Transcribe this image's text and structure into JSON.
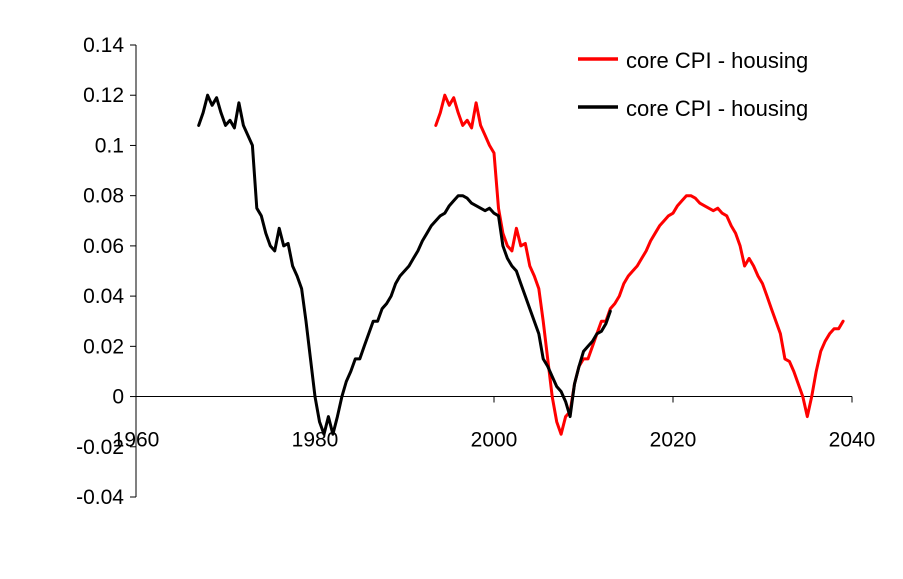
{
  "chart_data": {
    "type": "line",
    "title": "",
    "xlabel": "",
    "ylabel": "",
    "xlim": [
      1960,
      2040
    ],
    "ylim": [
      -0.04,
      0.14
    ],
    "x_ticks": [
      1960,
      1980,
      2000,
      2020,
      2040
    ],
    "x_tick_labels": [
      "1960",
      "1980",
      "2000",
      "2020",
      "2040"
    ],
    "y_ticks": [
      -0.04,
      -0.02,
      0,
      0.02,
      0.04,
      0.06,
      0.08,
      0.1,
      0.12,
      0.14
    ],
    "y_tick_labels": [
      "-0.04",
      "-0.02",
      "0",
      "0.02",
      "0.04",
      "0.06",
      "0.08",
      "0.1",
      "0.12",
      "0.14"
    ],
    "grid": false,
    "legend_position": "top-right",
    "series": [
      {
        "name": "core CPI - housing",
        "color": "#ff0000",
        "x": [
          1993.5,
          1994.0,
          1994.5,
          1995.0,
          1995.5,
          1996.0,
          1996.5,
          1997.0,
          1997.5,
          1998.0,
          1998.5,
          1999.0,
          1999.5,
          2000.0,
          2000.5,
          2001.0,
          2001.5,
          2002.0,
          2002.5,
          2003.0,
          2003.5,
          2004.0,
          2004.5,
          2005.0,
          2005.5,
          2006.0,
          2006.5,
          2007.0,
          2007.5,
          2008.0,
          2008.5,
          2009.0,
          2009.5,
          2010.0,
          2010.5,
          2011.0,
          2011.5,
          2012.0,
          2012.5,
          2013.0,
          2013.5,
          2014.0,
          2014.5,
          2015.0,
          2015.5,
          2016.0,
          2016.5,
          2017.0,
          2017.5,
          2018.0,
          2018.5,
          2019.0,
          2019.5,
          2020.0,
          2020.5,
          2021.0,
          2021.5,
          2022.0,
          2022.5,
          2023.0,
          2023.5,
          2024.0,
          2024.5,
          2025.0,
          2025.5,
          2026.0,
          2026.5,
          2027.0,
          2027.5,
          2028.0,
          2028.5,
          2029.0,
          2029.5,
          2030.0,
          2030.5,
          2031.0,
          2031.5,
          2032.0,
          2032.5,
          2033.0,
          2033.5,
          2034.0,
          2034.5,
          2035.0,
          2035.5,
          2036.0,
          2036.5,
          2037.0,
          2037.5,
          2038.0,
          2038.5,
          2039.0
        ],
        "y": [
          0.108,
          0.113,
          0.12,
          0.116,
          0.119,
          0.113,
          0.108,
          0.11,
          0.107,
          0.117,
          0.108,
          0.104,
          0.1,
          0.097,
          0.075,
          0.065,
          0.06,
          0.058,
          0.067,
          0.06,
          0.061,
          0.052,
          0.048,
          0.043,
          0.03,
          0.015,
          0.0,
          -0.01,
          -0.015,
          -0.008,
          -0.006,
          0.005,
          0.012,
          0.015,
          0.015,
          0.02,
          0.025,
          0.03,
          0.03,
          0.035,
          0.037,
          0.04,
          0.045,
          0.048,
          0.05,
          0.052,
          0.055,
          0.058,
          0.062,
          0.065,
          0.068,
          0.07,
          0.072,
          0.073,
          0.076,
          0.078,
          0.08,
          0.08,
          0.079,
          0.077,
          0.076,
          0.075,
          0.074,
          0.075,
          0.073,
          0.072,
          0.068,
          0.065,
          0.06,
          0.052,
          0.055,
          0.052,
          0.048,
          0.045,
          0.04,
          0.035,
          0.03,
          0.025,
          0.015,
          0.014,
          0.01,
          0.005,
          0.0,
          -0.008,
          0.0,
          0.01,
          0.018,
          0.022,
          0.025,
          0.027,
          0.027,
          0.03
        ]
      },
      {
        "name": "core CPI - housing",
        "color": "#000000",
        "x": [
          1967.0,
          1967.5,
          1968.0,
          1968.5,
          1969.0,
          1969.5,
          1970.0,
          1970.5,
          1971.0,
          1971.5,
          1972.0,
          1972.5,
          1973.0,
          1973.5,
          1974.0,
          1974.5,
          1975.0,
          1975.5,
          1976.0,
          1976.5,
          1977.0,
          1977.5,
          1978.0,
          1978.5,
          1979.0,
          1979.5,
          1980.0,
          1980.5,
          1981.0,
          1981.5,
          1982.0,
          1982.5,
          1983.0,
          1983.5,
          1984.0,
          1984.5,
          1985.0,
          1985.5,
          1986.0,
          1986.5,
          1987.0,
          1987.5,
          1988.0,
          1988.5,
          1989.0,
          1989.5,
          1990.0,
          1990.5,
          1991.0,
          1991.5,
          1992.0,
          1992.5,
          1993.0,
          1993.5,
          1994.0,
          1994.5,
          1995.0,
          1995.5,
          1996.0,
          1996.5,
          1997.0,
          1997.5,
          1998.0,
          1998.5,
          1999.0,
          1999.5,
          2000.0,
          2000.5,
          2001.0,
          2001.5,
          2002.0,
          2002.5,
          2003.0,
          2003.5,
          2004.0,
          2004.5,
          2005.0,
          2005.5,
          2006.0,
          2006.5,
          2007.0,
          2007.5,
          2008.0,
          2008.5,
          2009.0,
          2009.5,
          2010.0,
          2010.5,
          2011.0,
          2011.5,
          2012.0,
          2012.5,
          2013.0
        ],
        "y": [
          0.108,
          0.113,
          0.12,
          0.116,
          0.119,
          0.113,
          0.108,
          0.11,
          0.107,
          0.117,
          0.108,
          0.104,
          0.1,
          0.075,
          0.072,
          0.065,
          0.06,
          0.058,
          0.067,
          0.06,
          0.061,
          0.052,
          0.048,
          0.043,
          0.03,
          0.015,
          0.0,
          -0.01,
          -0.015,
          -0.008,
          -0.015,
          -0.008,
          0.0,
          0.006,
          0.01,
          0.015,
          0.015,
          0.02,
          0.025,
          0.03,
          0.03,
          0.035,
          0.037,
          0.04,
          0.045,
          0.048,
          0.05,
          0.052,
          0.055,
          0.058,
          0.062,
          0.065,
          0.068,
          0.07,
          0.072,
          0.073,
          0.076,
          0.078,
          0.08,
          0.08,
          0.079,
          0.077,
          0.076,
          0.075,
          0.074,
          0.075,
          0.073,
          0.072,
          0.06,
          0.055,
          0.052,
          0.05,
          0.045,
          0.04,
          0.035,
          0.03,
          0.025,
          0.015,
          0.012,
          0.008,
          0.004,
          0.002,
          -0.002,
          -0.008,
          0.005,
          0.012,
          0.018,
          0.02,
          0.022,
          0.025,
          0.026,
          0.029,
          0.034
        ]
      }
    ]
  }
}
